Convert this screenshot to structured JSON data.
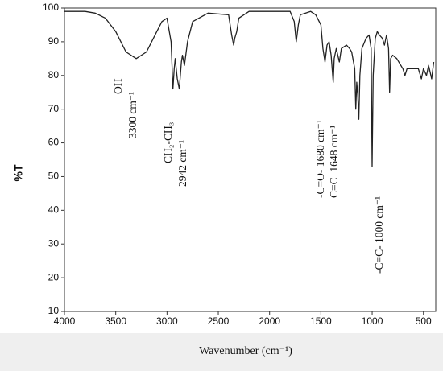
{
  "chart_data": {
    "type": "line",
    "xlabel": "Wavenumber (cm⁻¹)",
    "ylabel": "%T",
    "xlim": [
      4000,
      380
    ],
    "ylim": [
      10,
      100
    ],
    "xticks": [
      4000,
      3500,
      3000,
      2500,
      2000,
      1500,
      1000,
      500
    ],
    "yticks": [
      10,
      20,
      30,
      40,
      50,
      60,
      70,
      80,
      90,
      100
    ],
    "color": "#222222",
    "x": [
      4000,
      3800,
      3700,
      3600,
      3500,
      3400,
      3300,
      3200,
      3100,
      3050,
      3000,
      2960,
      2942,
      2930,
      2920,
      2900,
      2880,
      2860,
      2850,
      2830,
      2800,
      2750,
      2600,
      2400,
      2370,
      2350,
      2340,
      2320,
      2300,
      2200,
      2000,
      1800,
      1760,
      1740,
      1720,
      1700,
      1600,
      1550,
      1500,
      1480,
      1460,
      1440,
      1420,
      1400,
      1380,
      1370,
      1350,
      1320,
      1300,
      1250,
      1220,
      1200,
      1170,
      1160,
      1150,
      1140,
      1130,
      1120,
      1100,
      1060,
      1030,
      1010,
      1000,
      990,
      970,
      950,
      930,
      900,
      880,
      860,
      840,
      830,
      820,
      800,
      760,
      700,
      680,
      660,
      600,
      550,
      520,
      500,
      470,
      450,
      420,
      400
    ],
    "values": [
      99,
      99,
      98.5,
      97,
      93,
      87,
      85,
      87,
      93,
      96,
      97,
      90,
      76,
      82,
      85,
      79,
      76,
      84,
      86,
      83,
      90,
      96,
      98.5,
      98,
      92,
      89,
      91,
      93,
      97,
      99,
      99,
      99,
      96,
      90,
      95,
      98,
      99,
      98,
      95,
      88,
      84,
      89,
      90,
      86,
      78,
      85,
      88,
      84,
      88,
      89,
      88,
      87,
      82,
      70,
      78,
      74,
      67,
      80,
      88,
      91,
      92,
      88,
      53,
      80,
      91,
      93,
      92,
      91,
      89,
      92,
      88,
      75,
      85,
      86,
      85,
      82,
      80,
      82,
      82,
      82,
      79,
      82,
      80,
      83,
      79,
      84
    ],
    "annotations": [
      "OH",
      "3300 cm⁻¹",
      "CH₂-CH₃",
      "2942 cm⁻¹",
      "-C=O- 1680 cm⁻¹",
      "C=C  1648 cm⁻¹",
      "-C=C- 1000 cm⁻¹"
    ]
  }
}
